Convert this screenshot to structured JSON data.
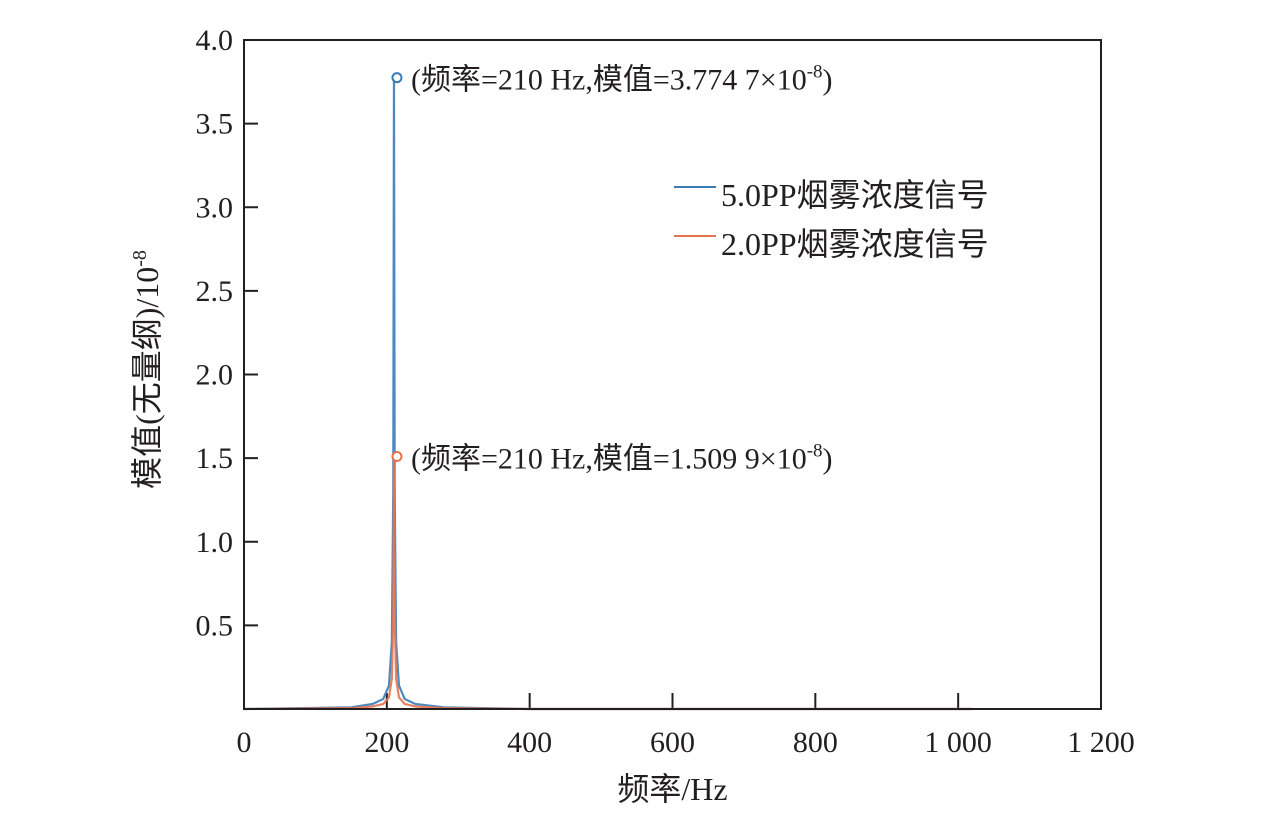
{
  "chart_data": {
    "type": "line",
    "xlabel": "频率/Hz",
    "ylabel": "模值(无量纲)/10",
    "ylabel_exp": "-8",
    "xlim": [
      0,
      1200
    ],
    "ylim": [
      0,
      4.0
    ],
    "x_ticks": [
      0,
      200,
      400,
      600,
      800,
      1000,
      1200
    ],
    "x_tick_labels": [
      "0",
      "200",
      "400",
      "600",
      "800",
      "1 000",
      "1 200"
    ],
    "y_ticks": [
      0.5,
      1.0,
      1.5,
      2.0,
      2.5,
      3.0,
      3.5,
      4.0
    ],
    "y_tick_labels": [
      "0.5",
      "1.0",
      "1.5",
      "2.0",
      "2.5",
      "3.0",
      "3.5",
      "4.0"
    ],
    "legend_position": "right",
    "series": [
      {
        "name": "5.0PP烟雾浓度信号",
        "color": "#3a7cb8",
        "x": [
          0,
          150,
          180,
          195,
          203,
          207,
          209,
          210,
          211,
          213,
          217,
          225,
          240,
          280,
          400,
          1020
        ],
        "y": [
          0.0,
          0.01,
          0.03,
          0.06,
          0.14,
          0.4,
          1.3,
          3.7747,
          1.3,
          0.4,
          0.14,
          0.06,
          0.03,
          0.01,
          0.0,
          0.0
        ]
      },
      {
        "name": "2.0PP烟雾浓度信号",
        "color": "#e5734f",
        "x": [
          0,
          150,
          180,
          195,
          203,
          207,
          209,
          210,
          211,
          213,
          217,
          225,
          240,
          280,
          400,
          1020
        ],
        "y": [
          0.0,
          0.005,
          0.015,
          0.03,
          0.07,
          0.18,
          0.55,
          1.5099,
          0.55,
          0.18,
          0.07,
          0.03,
          0.015,
          0.005,
          0.0,
          0.0
        ]
      }
    ],
    "annotations": [
      {
        "series": 0,
        "x": 210,
        "y": 3.7747,
        "text": "(频率=210 Hz,模值=3.774 7×10",
        "sup": "-8",
        "close": ")"
      },
      {
        "series": 1,
        "x": 210,
        "y": 1.5099,
        "text": "(频率=210 Hz,模值=1.509 9×10",
        "sup": "-8",
        "close": ")"
      }
    ]
  }
}
